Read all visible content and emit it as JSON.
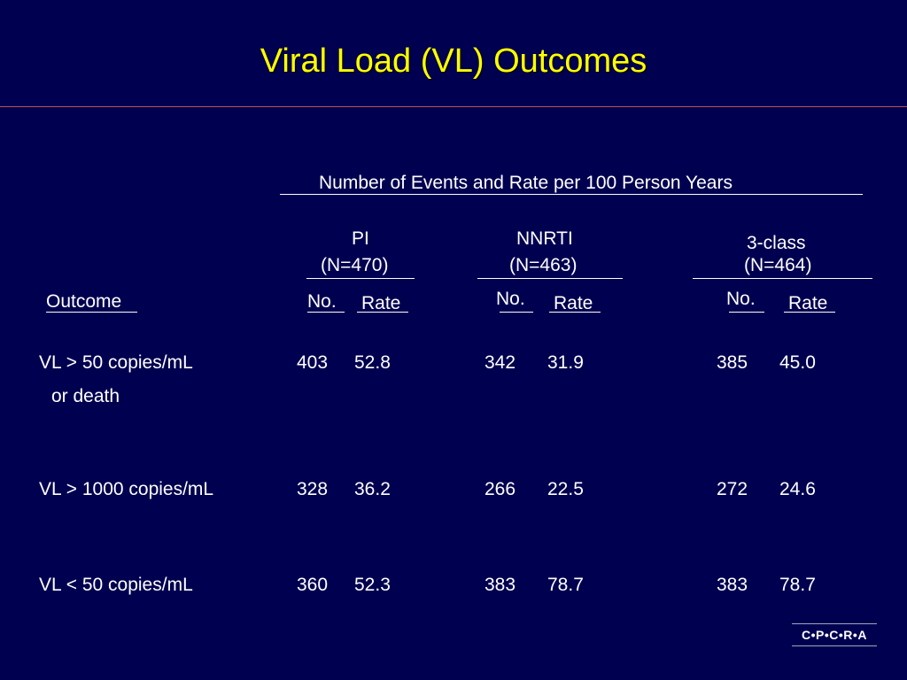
{
  "title": "Viral Load (VL) Outcomes",
  "table": {
    "super_header": "Number of Events and Rate per 100 Person Years",
    "groups": [
      {
        "name": "PI",
        "n": "(N=470)"
      },
      {
        "name": "NNRTI",
        "n": "(N=463)"
      },
      {
        "name": "3-class",
        "n": "(N=464)"
      }
    ],
    "outcome_header": "Outcome",
    "no_label": "No.",
    "rate_label": "Rate",
    "rows": [
      {
        "label_line1": "VL > 50 copies/mL",
        "label_line2": "or death",
        "values": [
          "403",
          "52.8",
          "342",
          "31.9",
          "385",
          "45.0"
        ]
      },
      {
        "label_line1": "VL > 1000 copies/mL",
        "values": [
          "328",
          "36.2",
          "266",
          "22.5",
          "272",
          "24.6"
        ]
      },
      {
        "label_line1": "VL < 50 copies/mL",
        "values": [
          "360",
          "52.3",
          "383",
          "78.7",
          "383",
          "78.7"
        ]
      }
    ]
  },
  "logo": "C•P•C•R•A"
}
